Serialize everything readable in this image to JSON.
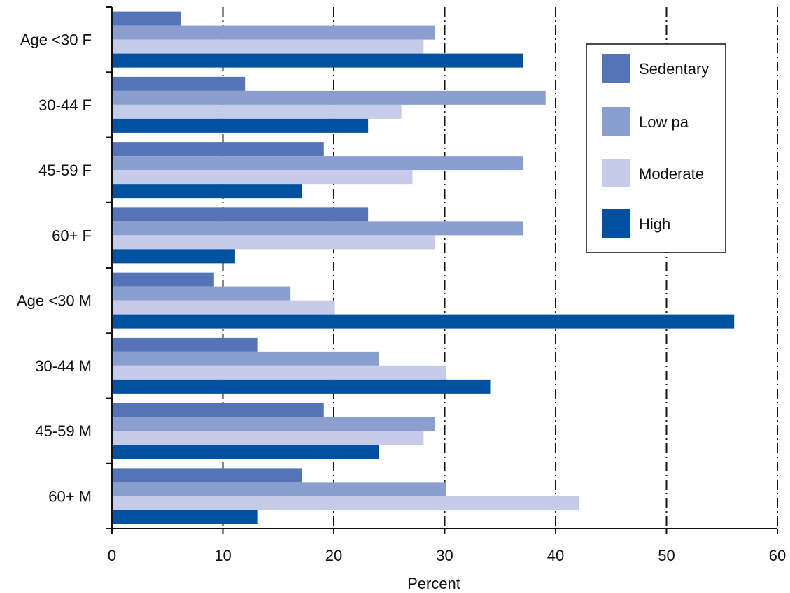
{
  "chart_data": {
    "type": "bar",
    "orientation": "horizontal",
    "categories": [
      "Age <30 F",
      "30-44 F",
      "45-59 F",
      "60+ F",
      "Age <30 M",
      "30-44 M",
      "45-59 M",
      "60+ M"
    ],
    "series": [
      {
        "name": "Sedentary",
        "color": "#5574b8",
        "values": [
          6.2,
          12,
          19.1,
          23.1,
          9.2,
          13.1,
          19.1,
          17.1
        ]
      },
      {
        "name": "Low pa",
        "color": "#8a9fd0",
        "values": [
          29.1,
          39.1,
          37.1,
          37.1,
          16.1,
          24.1,
          29.1,
          30.1
        ]
      },
      {
        "name": "Moderate",
        "color": "#c5cbe8",
        "values": [
          28.1,
          26.1,
          27.1,
          29.1,
          20.1,
          30.1,
          28.1,
          42.1
        ]
      },
      {
        "name": "High",
        "color": "#0052a0",
        "values": [
          37.1,
          23.1,
          17.1,
          11.1,
          56.1,
          34.1,
          24.1,
          13.1
        ]
      }
    ],
    "xlabel": "Percent",
    "ylabel": "",
    "xlim": [
      0,
      60
    ],
    "xticks": [
      0,
      10,
      20,
      30,
      40,
      50,
      60
    ],
    "grid": "vertical dash-dot",
    "legend_position": "top-right"
  }
}
